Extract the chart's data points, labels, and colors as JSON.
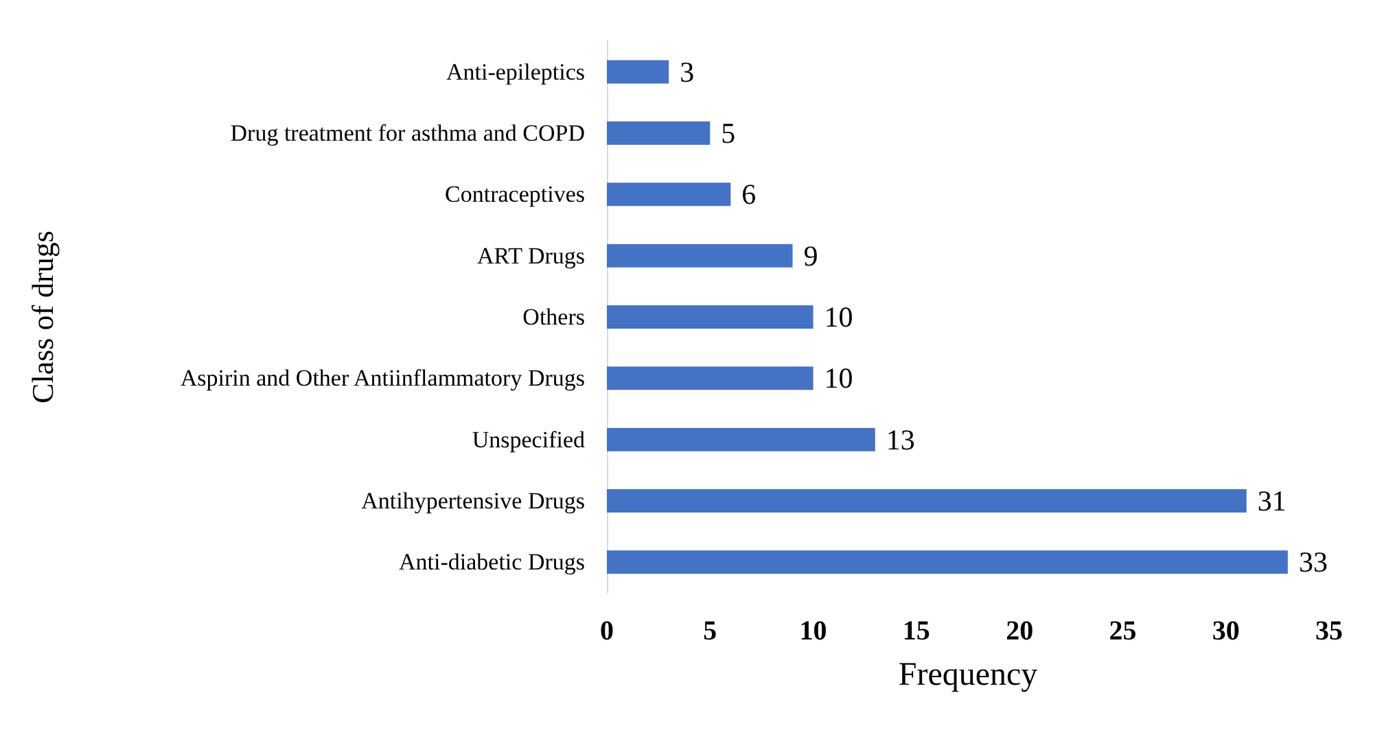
{
  "chart_data": {
    "type": "bar",
    "orientation": "horizontal",
    "xlabel": "Frequency",
    "ylabel": "Class of drugs",
    "categories": [
      "Anti-epileptics",
      "Drug treatment for asthma and COPD",
      "Contraceptives",
      "ART Drugs",
      "Others",
      "Aspirin and Other Antiinflammatory Drugs",
      "Unspecified",
      "Antihypertensive Drugs",
      "Anti-diabetic Drugs"
    ],
    "values": [
      3,
      5,
      6,
      9,
      10,
      10,
      13,
      31,
      33
    ],
    "color": "#4472c4",
    "xlim": [
      0,
      35
    ],
    "xticks": [
      0,
      5,
      10,
      15,
      20,
      25,
      30,
      35
    ],
    "grid": false,
    "data_labels": true
  }
}
